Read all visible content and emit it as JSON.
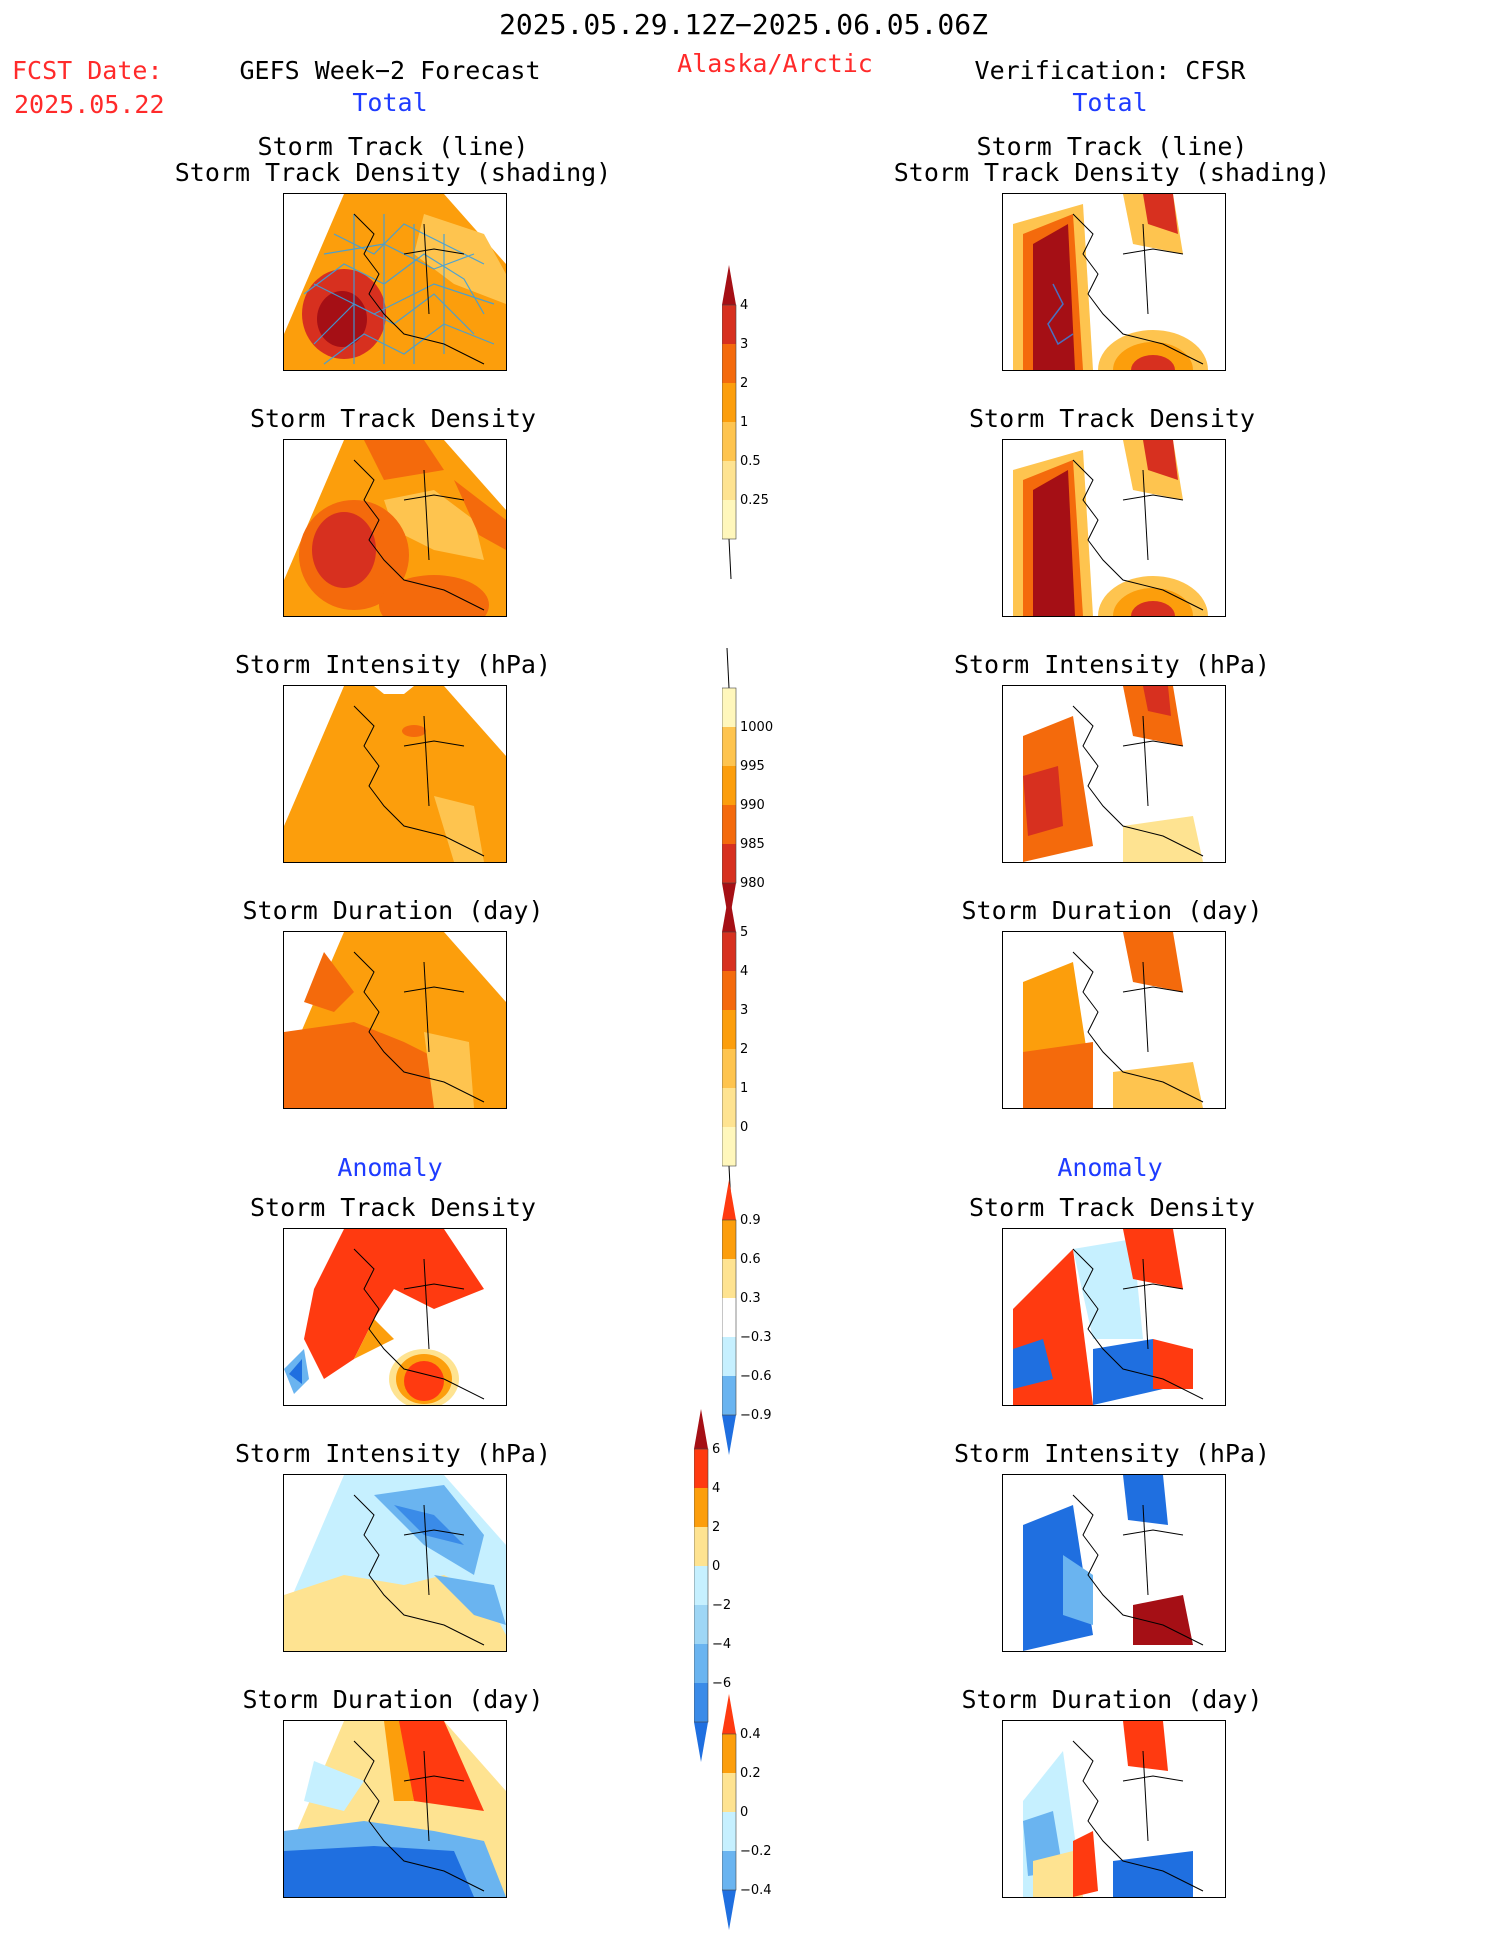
{
  "header": {
    "period": "2025.05.29.12Z−2025.06.05.06Z",
    "fcst_label": "FCST Date:",
    "fcst_date": "2025.05.22",
    "left_title": "GEFS Week−2 Forecast",
    "region": "Alaska/Arctic",
    "right_title": "Verification: CFSR",
    "total_left": "Total",
    "total_right": "Total",
    "anomaly_left": "Anomaly",
    "anomaly_right": "Anomaly"
  },
  "panels": {
    "track_l1": "Storm Track (line)",
    "track_l2": "Storm Track Density (shading)",
    "density": "Storm Track Density",
    "intensity": "Storm Intensity (hPa)",
    "duration": "Storm Duration (day)"
  },
  "colorbars": {
    "density_total": {
      "labels": [
        "4",
        "3",
        "2",
        "1",
        "0.5",
        "0.25"
      ],
      "colors": [
        "#a50f15",
        "#d7301f",
        "#f46a0c",
        "#fc9e0c",
        "#fec44f",
        "#fee391",
        "#fff7bc"
      ]
    },
    "intensity_total": {
      "labels": [
        "1000",
        "995",
        "990",
        "985",
        "980"
      ],
      "colors": [
        "#fff7bc",
        "#fec44f",
        "#fc9e0c",
        "#f46a0c",
        "#d7301f",
        "#a50f15"
      ]
    },
    "duration_total": {
      "labels": [
        "5",
        "4",
        "3",
        "2",
        "1",
        "0"
      ],
      "colors": [
        "#a50f15",
        "#d7301f",
        "#f46a0c",
        "#fc9e0c",
        "#fec44f",
        "#fee391",
        "#fff7bc"
      ]
    },
    "density_anom": {
      "labels": [
        "0.9",
        "0.6",
        "0.3",
        "−0.3",
        "−0.6",
        "−0.9"
      ],
      "colors": [
        "#ff3a10",
        "#fc9e0c",
        "#fee391",
        "#ffffff",
        "#c6f0ff",
        "#6ab4f0",
        "#1f6fe0"
      ]
    },
    "intensity_anom": {
      "labels": [
        "6",
        "4",
        "2",
        "0",
        "−2",
        "−4",
        "−6"
      ],
      "colors": [
        "#a50f15",
        "#ff3a10",
        "#fc9e0c",
        "#fee391",
        "#c6f0ff",
        "#9ed6f5",
        "#6ab4f0",
        "#3a8be8",
        "#1f6fe0"
      ]
    },
    "duration_anom": {
      "labels": [
        "0.4",
        "0.2",
        "0",
        "−0.2",
        "−0.4"
      ],
      "colors": [
        "#ff3a10",
        "#fc9e0c",
        "#fee391",
        "#c6f0ff",
        "#6ab4f0",
        "#1f6fe0"
      ]
    }
  }
}
